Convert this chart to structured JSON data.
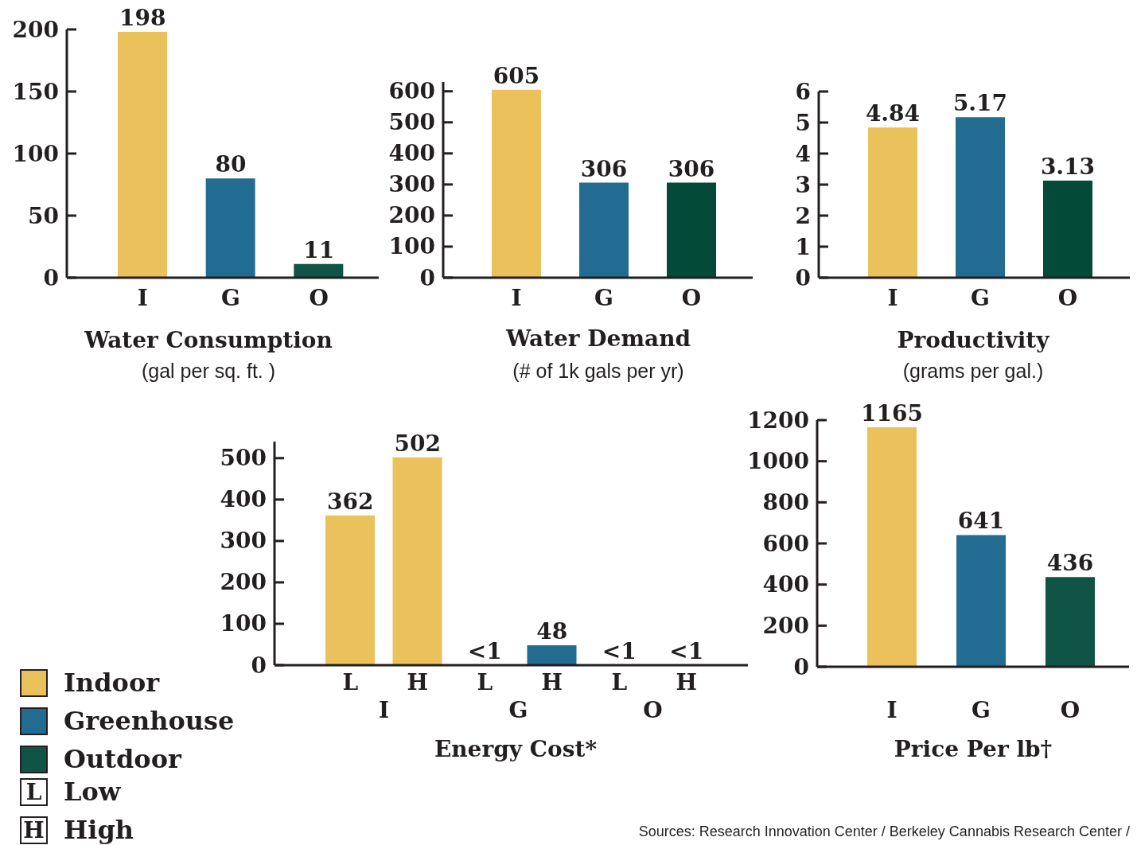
{
  "chart_data": [
    {
      "type": "bar",
      "title": "Water Consumption",
      "subtitle": "(gal per sq. ft. )",
      "categories": [
        "I",
        "G",
        "O"
      ],
      "values": [
        198,
        80,
        11
      ],
      "colors": [
        "#eac15b",
        "#226b91",
        "#0f5444"
      ],
      "ylim": [
        0,
        200
      ],
      "yticks": [
        0,
        50,
        100,
        150,
        200
      ],
      "data_labels": true
    },
    {
      "type": "bar",
      "title": "Water Demand",
      "subtitle": "(# of 1k gals per yr)",
      "categories": [
        "I",
        "G",
        "O"
      ],
      "values": [
        605,
        306,
        306
      ],
      "colors": [
        "#eac15b",
        "#226b91",
        "#034a39"
      ],
      "ylim": [
        0,
        630
      ],
      "yticks": [
        0,
        100,
        200,
        300,
        400,
        500,
        600
      ],
      "data_labels": true
    },
    {
      "type": "bar",
      "title": "Productivity",
      "subtitle": "(grams per gal.)",
      "categories": [
        "I",
        "G",
        "O"
      ],
      "values": [
        4.84,
        5.17,
        3.13
      ],
      "colors": [
        "#eac15b",
        "#226b91",
        "#034a39"
      ],
      "ylim": [
        0,
        6
      ],
      "yticks": [
        0,
        1,
        2,
        3,
        4,
        5,
        6
      ],
      "data_labels": true
    },
    {
      "type": "bar",
      "title": "Energy Cost*",
      "categories": [
        "L",
        "H",
        "L",
        "H",
        "L",
        "H"
      ],
      "series": [
        {
          "name": "Indoor",
          "color": "#eac15b",
          "values": [
            362,
            502,
            null,
            null,
            null,
            null
          ],
          "value_labels": [
            "362",
            "502",
            null,
            null,
            null,
            null
          ]
        },
        {
          "name": "Greenhouse",
          "color": "#226b91",
          "values": [
            null,
            null,
            0,
            48,
            null,
            null
          ],
          "value_labels": [
            null,
            null,
            "<1",
            "48",
            null,
            null
          ]
        },
        {
          "name": "Outdoor",
          "color": "#0f5444",
          "values": [
            null,
            null,
            null,
            null,
            0,
            0
          ],
          "value_labels": [
            null,
            null,
            null,
            null,
            "<1",
            "<1"
          ]
        }
      ],
      "stacked": true,
      "ylim": [
        0,
        540
      ],
      "yticks": [
        0,
        100,
        200,
        300,
        400,
        500
      ],
      "legend": "bottom left",
      "annotations": [
        "I",
        "G",
        "O"
      ]
    },
    {
      "type": "bar",
      "title": "Price Per lb†",
      "categories": [
        "I",
        "G",
        "O"
      ],
      "values": [
        1165,
        641,
        436
      ],
      "colors": [
        "#eac15b",
        "#226b91",
        "#0f5444"
      ],
      "ylim": [
        0,
        1200
      ],
      "yticks": [
        0,
        200,
        400,
        600,
        800,
        1000,
        1200
      ],
      "data_labels": true,
      "annotations": [
        "Sources: Research Innovation Center / Berkeley Cannabis Research Center /"
      ]
    },
    {
      "type": "other",
      "annotations": [
        "L",
        "Low",
        "H",
        "High"
      ]
    }
  ]
}
